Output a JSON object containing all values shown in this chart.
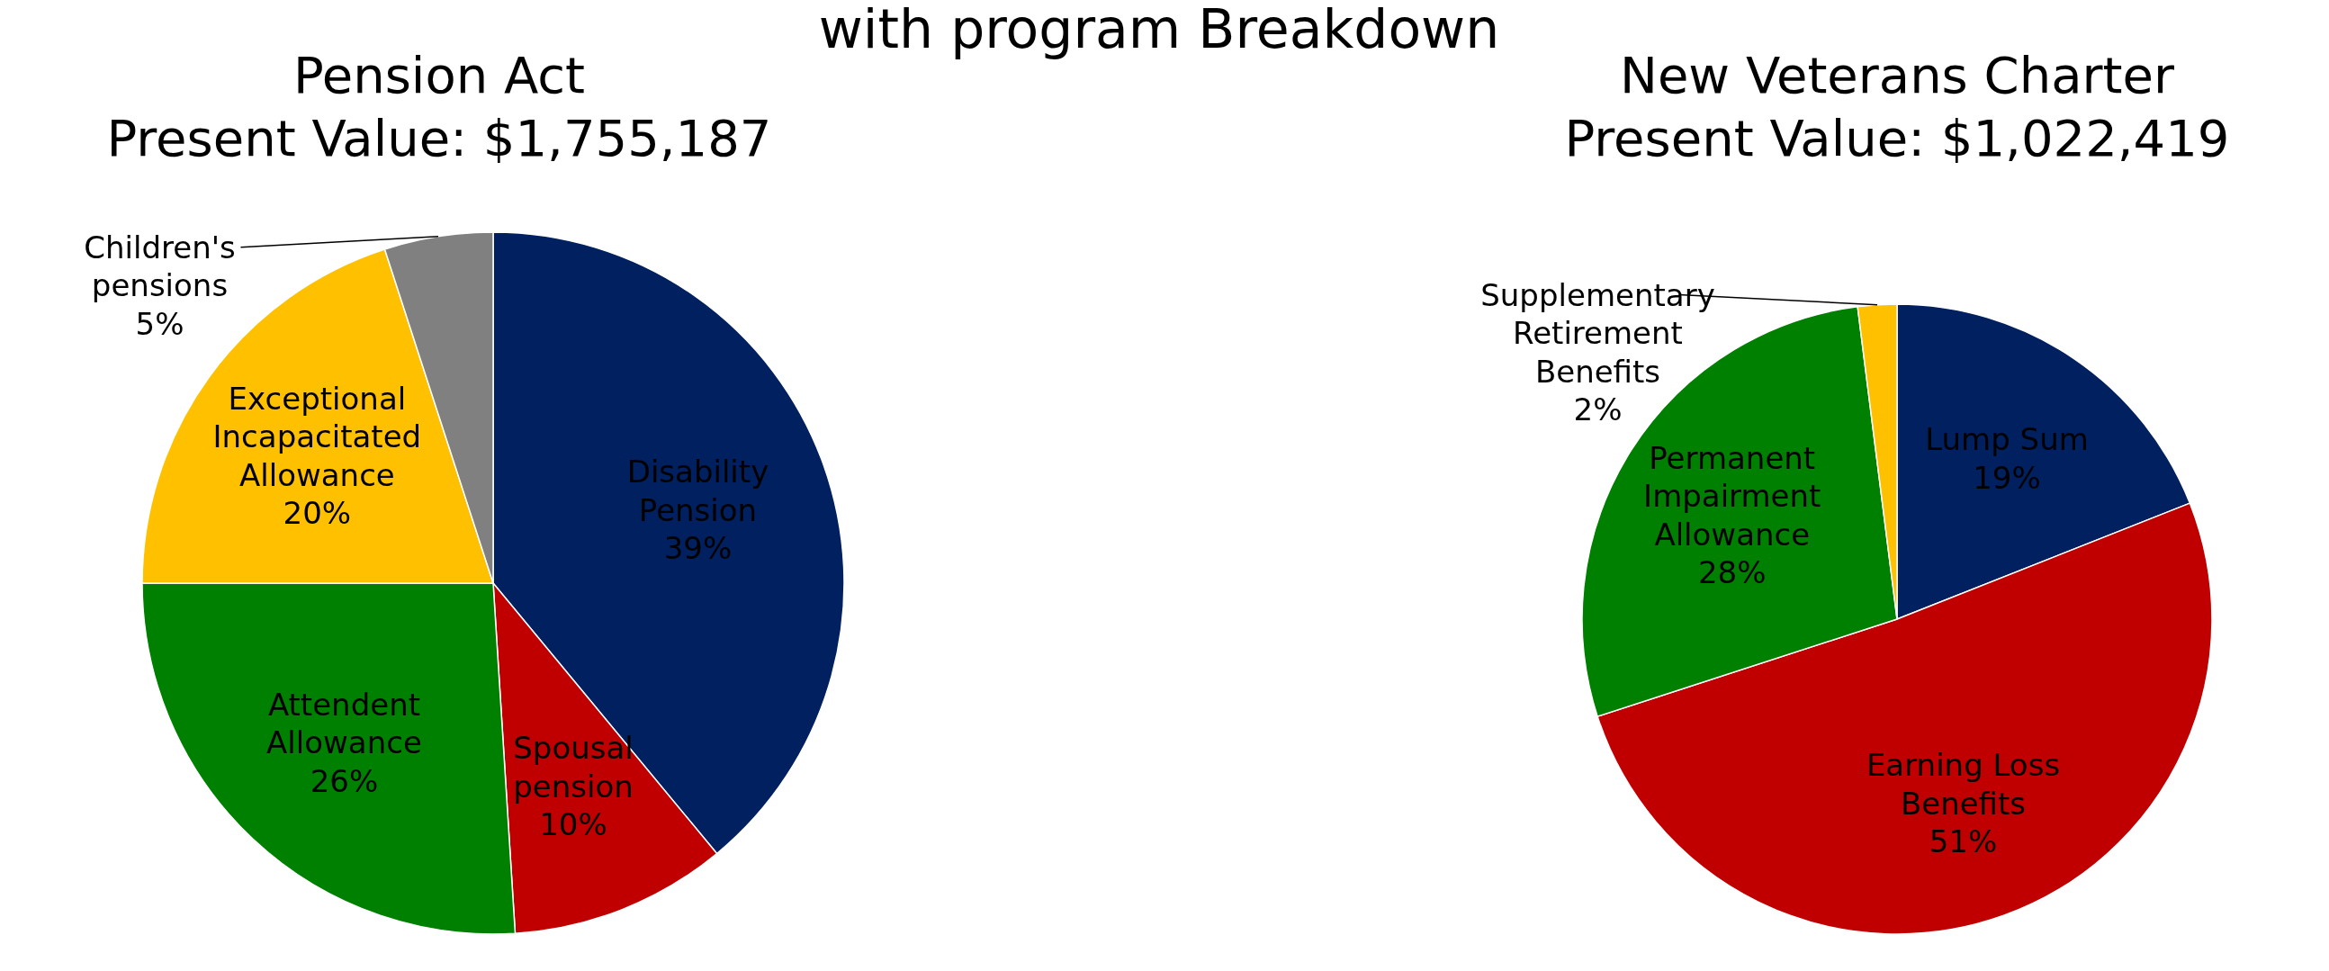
{
  "chart_data": [
    {
      "type": "pie",
      "title": "Pension Act",
      "subtitle": "Present Value: $1,755,187",
      "annotations": [
        "with program Breakdown"
      ],
      "categories": [
        "Disability Pension",
        "Spousal pension",
        "Attendent Allowance",
        "Exceptional Incapacitated Allowance",
        "Children's pensions"
      ],
      "values": [
        39,
        10,
        26,
        20,
        5
      ],
      "value_labels": [
        "39%",
        "10%",
        "26%",
        "20%",
        "5%"
      ],
      "colors": [
        "#002060",
        "#c00000",
        "#008000",
        "#ffc000",
        "#808080"
      ]
    },
    {
      "type": "pie",
      "title": "New Veterans Charter",
      "subtitle": "Present Value: $1,022,419",
      "categories": [
        "Lump Sum",
        "Earning Loss Benefits",
        "Permanent Impairment Allowance",
        "Supplementary Retirement Benefits"
      ],
      "values": [
        19,
        51,
        28,
        2
      ],
      "value_labels": [
        "19%",
        "51%",
        "28%",
        "2%"
      ],
      "colors": [
        "#002060",
        "#c00000",
        "#008000",
        "#ffc000"
      ]
    }
  ]
}
